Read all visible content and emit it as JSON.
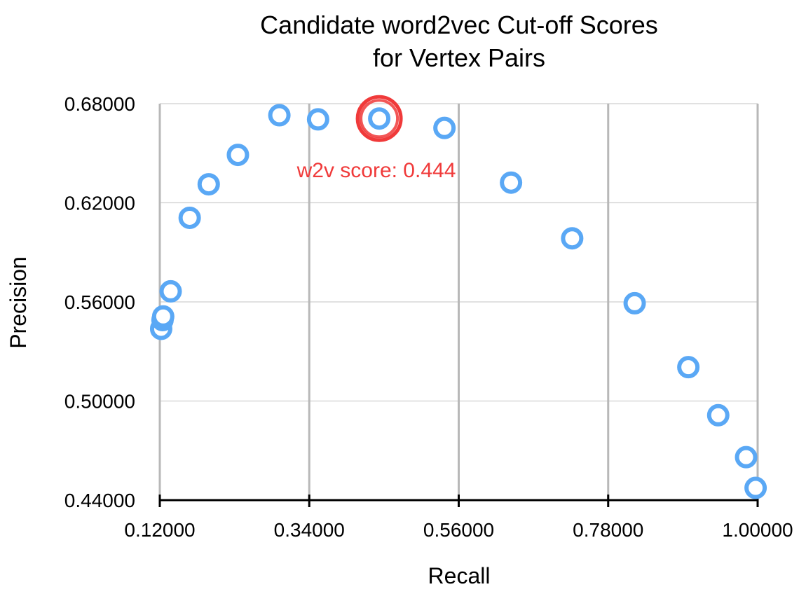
{
  "chart_data": {
    "type": "scatter",
    "title": [
      "Candidate word2vec Cut-off Scores",
      "for Vertex Pairs"
    ],
    "xlabel": "Recall",
    "ylabel": "Precision",
    "xlim": [
      0.12,
      1.0
    ],
    "ylim": [
      0.44,
      0.68
    ],
    "xticks": [
      0.12,
      0.34,
      0.56,
      0.78,
      1.0
    ],
    "xtick_labels": [
      "0.12000",
      "0.34000",
      "0.56000",
      "0.78000",
      "1.00000"
    ],
    "yticks": [
      0.44,
      0.5,
      0.56,
      0.62,
      0.68
    ],
    "ytick_labels": [
      "0.44000",
      "0.50000",
      "0.56000",
      "0.62000",
      "0.68000"
    ],
    "grid": {
      "vertical": true,
      "horizontal": true
    },
    "marker_color": "#5aa8f5",
    "highlight_color": "#f03a3a",
    "series": [
      {
        "points": [
          {
            "x": 0.122,
            "y": 0.5437
          },
          {
            "x": 0.124,
            "y": 0.549
          },
          {
            "x": 0.125,
            "y": 0.5512
          },
          {
            "x": 0.136,
            "y": 0.5664
          },
          {
            "x": 0.164,
            "y": 0.6109
          },
          {
            "x": 0.192,
            "y": 0.6312
          },
          {
            "x": 0.235,
            "y": 0.649
          },
          {
            "x": 0.296,
            "y": 0.673
          },
          {
            "x": 0.353,
            "y": 0.6705
          },
          {
            "x": 0.443,
            "y": 0.671
          },
          {
            "x": 0.539,
            "y": 0.6653
          },
          {
            "x": 0.637,
            "y": 0.6322
          },
          {
            "x": 0.727,
            "y": 0.5985
          },
          {
            "x": 0.819,
            "y": 0.5592
          },
          {
            "x": 0.898,
            "y": 0.5205
          },
          {
            "x": 0.942,
            "y": 0.4914
          },
          {
            "x": 0.983,
            "y": 0.466
          },
          {
            "x": 0.997,
            "y": 0.4474
          }
        ]
      }
    ],
    "highlight": {
      "x": 0.443,
      "y": 0.671
    },
    "annotation": "w2v score: 0.444"
  }
}
